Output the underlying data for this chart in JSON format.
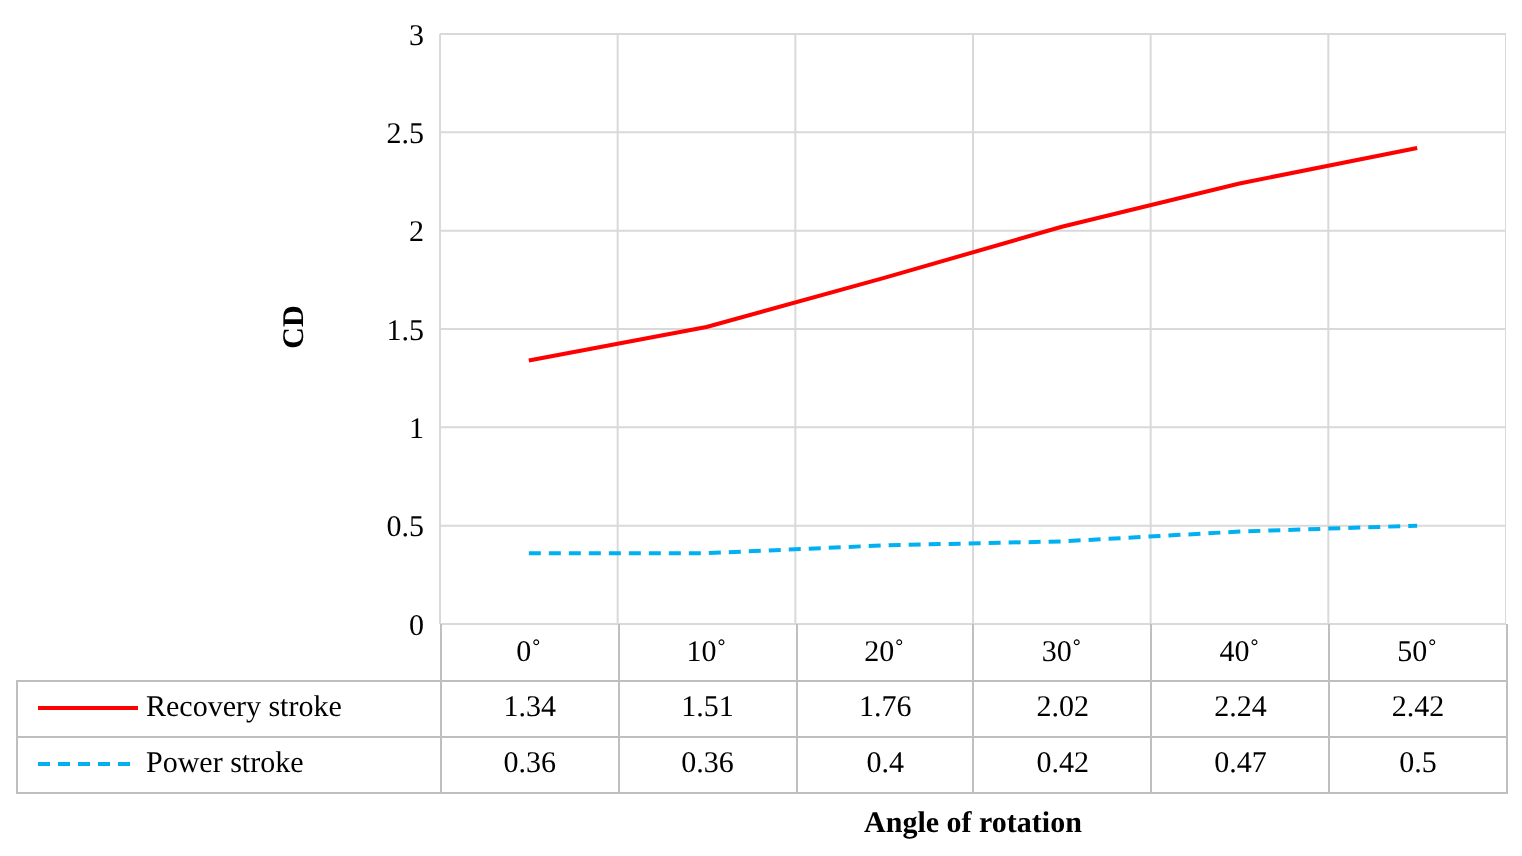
{
  "chart_data": {
    "type": "line",
    "xlabel": "Angle of rotation",
    "ylabel": "CD",
    "categories": [
      "0˚",
      "10˚",
      "20˚",
      "30˚",
      "40˚",
      "50˚"
    ],
    "series": [
      {
        "name": "Recovery stroke",
        "color": "#ff0000",
        "line_style": "solid",
        "values": [
          1.34,
          1.51,
          1.76,
          2.02,
          2.24,
          2.42
        ]
      },
      {
        "name": "Power stroke",
        "color": "#00b0f0",
        "line_style": "dashed",
        "values": [
          0.36,
          0.36,
          0.4,
          0.42,
          0.47,
          0.5
        ]
      }
    ],
    "ylim": [
      0,
      3
    ],
    "yticks": [
      0,
      0.5,
      1,
      1.5,
      2,
      2.5,
      3
    ],
    "grid": true,
    "legend": "bottom",
    "data_labels": true
  }
}
